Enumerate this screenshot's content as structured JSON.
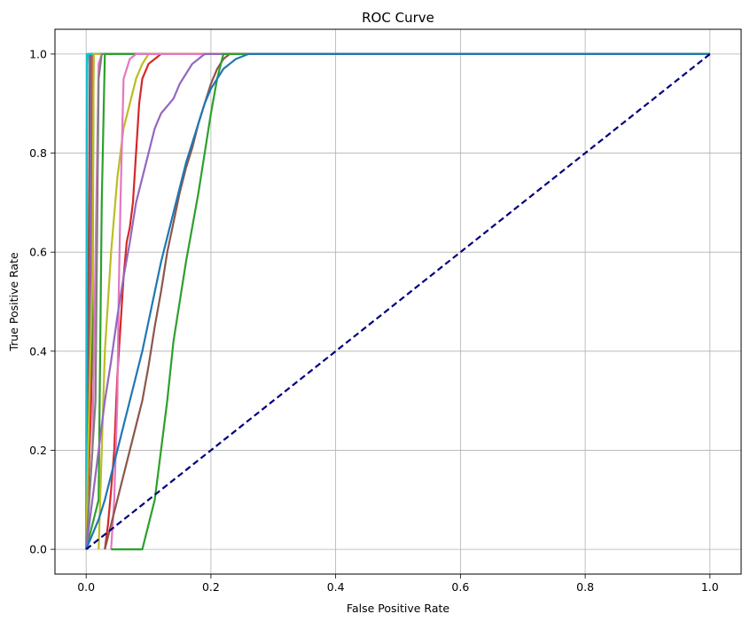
{
  "chart_data": {
    "type": "line",
    "title": "ROC Curve",
    "xlabel": "False Positive Rate",
    "ylabel": "True Positive Rate",
    "xlim": [
      -0.05,
      1.05
    ],
    "ylim": [
      -0.05,
      1.05
    ],
    "xticks": [
      "0.0",
      "0.2",
      "0.4",
      "0.6",
      "0.8",
      "1.0"
    ],
    "yticks": [
      "0.0",
      "0.2",
      "0.4",
      "0.6",
      "0.8",
      "1.0"
    ],
    "grid": true,
    "legend": "none",
    "series": [
      {
        "color": "#2ca02c",
        "points": [
          [
            0,
            0
          ],
          [
            0.01,
            0.4
          ],
          [
            0.012,
            1
          ],
          [
            1,
            1
          ]
        ]
      },
      {
        "color": "#d62728",
        "points": [
          [
            0,
            0
          ],
          [
            0.008,
            0.3
          ],
          [
            0.01,
            1
          ],
          [
            1,
            1
          ]
        ]
      },
      {
        "color": "#9467bd",
        "points": [
          [
            0,
            0
          ],
          [
            0.006,
            0.5
          ],
          [
            0.008,
            1
          ],
          [
            1,
            1
          ]
        ]
      },
      {
        "color": "#8c564b",
        "points": [
          [
            0,
            0
          ],
          [
            0.004,
            0.6
          ],
          [
            0.006,
            1
          ],
          [
            1,
            1
          ]
        ]
      },
      {
        "color": "#17becf",
        "points": [
          [
            0,
            0
          ],
          [
            0.001,
            0.8
          ],
          [
            0.002,
            0.98
          ],
          [
            0.003,
            1
          ],
          [
            1,
            1
          ]
        ]
      },
      {
        "color": "#17becf",
        "points": [
          [
            0,
            0
          ],
          [
            0.001,
            1
          ],
          [
            1,
            1
          ]
        ]
      },
      {
        "color": "#bcbd22",
        "points": [
          [
            0,
            0
          ],
          [
            0.005,
            0.3
          ],
          [
            0.01,
            0.55
          ],
          [
            0.012,
            1
          ],
          [
            1,
            1
          ]
        ]
      },
      {
        "color": "#e377c2",
        "points": [
          [
            0,
            0
          ],
          [
            0.01,
            0.2
          ],
          [
            0.02,
            0.98
          ],
          [
            0.025,
            1
          ],
          [
            1,
            1
          ]
        ]
      },
      {
        "color": "#7f7f7f",
        "points": [
          [
            0,
            0
          ],
          [
            0.015,
            0.3
          ],
          [
            0.02,
            0.95
          ],
          [
            0.025,
            1
          ],
          [
            1,
            1
          ]
        ]
      },
      {
        "color": "#2ca02c",
        "points": [
          [
            0,
            0
          ],
          [
            0.02,
            0.1
          ],
          [
            0.025,
            0.7
          ],
          [
            0.03,
            1
          ],
          [
            1,
            1
          ]
        ]
      },
      {
        "color": "#d62728",
        "points": [
          [
            0.03,
            0
          ],
          [
            0.035,
            0.05
          ],
          [
            0.04,
            0.12
          ],
          [
            0.045,
            0.2
          ],
          [
            0.05,
            0.35
          ],
          [
            0.055,
            0.45
          ],
          [
            0.06,
            0.55
          ],
          [
            0.065,
            0.62
          ],
          [
            0.07,
            0.65
          ],
          [
            0.075,
            0.7
          ],
          [
            0.08,
            0.8
          ],
          [
            0.085,
            0.9
          ],
          [
            0.09,
            0.95
          ],
          [
            0.1,
            0.98
          ],
          [
            0.12,
            1
          ],
          [
            1,
            1
          ]
        ]
      },
      {
        "color": "#bcbd22",
        "points": [
          [
            0.02,
            0
          ],
          [
            0.025,
            0.2
          ],
          [
            0.03,
            0.4
          ],
          [
            0.04,
            0.6
          ],
          [
            0.05,
            0.75
          ],
          [
            0.06,
            0.85
          ],
          [
            0.07,
            0.9
          ],
          [
            0.08,
            0.95
          ],
          [
            0.09,
            0.98
          ],
          [
            0.1,
            1
          ],
          [
            1,
            1
          ]
        ]
      },
      {
        "color": "#e377c2",
        "points": [
          [
            0.04,
            0
          ],
          [
            0.045,
            0.1
          ],
          [
            0.05,
            0.3
          ],
          [
            0.052,
            0.5
          ],
          [
            0.055,
            0.7
          ],
          [
            0.058,
            0.85
          ],
          [
            0.06,
            0.95
          ],
          [
            0.07,
            0.99
          ],
          [
            0.08,
            1
          ],
          [
            1,
            1
          ]
        ]
      },
      {
        "color": "#9467bd",
        "points": [
          [
            0,
            0
          ],
          [
            0.01,
            0.1
          ],
          [
            0.02,
            0.2
          ],
          [
            0.03,
            0.3
          ],
          [
            0.04,
            0.38
          ],
          [
            0.05,
            0.47
          ],
          [
            0.06,
            0.55
          ],
          [
            0.07,
            0.62
          ],
          [
            0.08,
            0.7
          ],
          [
            0.09,
            0.75
          ],
          [
            0.1,
            0.8
          ],
          [
            0.11,
            0.85
          ],
          [
            0.12,
            0.88
          ],
          [
            0.14,
            0.91
          ],
          [
            0.15,
            0.94
          ],
          [
            0.16,
            0.96
          ],
          [
            0.17,
            0.98
          ],
          [
            0.18,
            0.99
          ],
          [
            0.19,
            1
          ],
          [
            1,
            1
          ]
        ]
      },
      {
        "color": "#8c564b",
        "points": [
          [
            0.03,
            0
          ],
          [
            0.04,
            0.05
          ],
          [
            0.05,
            0.1
          ],
          [
            0.06,
            0.15
          ],
          [
            0.07,
            0.2
          ],
          [
            0.08,
            0.25
          ],
          [
            0.09,
            0.3
          ],
          [
            0.1,
            0.37
          ],
          [
            0.11,
            0.45
          ],
          [
            0.12,
            0.52
          ],
          [
            0.13,
            0.6
          ],
          [
            0.14,
            0.66
          ],
          [
            0.15,
            0.72
          ],
          [
            0.16,
            0.77
          ],
          [
            0.17,
            0.81
          ],
          [
            0.18,
            0.86
          ],
          [
            0.19,
            0.9
          ],
          [
            0.2,
            0.94
          ],
          [
            0.21,
            0.97
          ],
          [
            0.22,
            0.99
          ],
          [
            0.23,
            1
          ],
          [
            1,
            1
          ]
        ]
      },
      {
        "color": "#2ca02c",
        "points": [
          [
            0.04,
            0
          ],
          [
            0.05,
            0
          ],
          [
            0.06,
            0
          ],
          [
            0.07,
            0
          ],
          [
            0.08,
            0
          ],
          [
            0.09,
            0
          ],
          [
            0.1,
            0.05
          ],
          [
            0.11,
            0.1
          ],
          [
            0.12,
            0.2
          ],
          [
            0.13,
            0.3
          ],
          [
            0.14,
            0.42
          ],
          [
            0.15,
            0.5
          ],
          [
            0.16,
            0.58
          ],
          [
            0.17,
            0.65
          ],
          [
            0.18,
            0.72
          ],
          [
            0.19,
            0.8
          ],
          [
            0.2,
            0.88
          ],
          [
            0.21,
            0.95
          ],
          [
            0.22,
            1
          ],
          [
            1,
            1
          ]
        ]
      },
      {
        "color": "#1f77b4",
        "points": [
          [
            0,
            0
          ],
          [
            0.01,
            0.03
          ],
          [
            0.02,
            0.06
          ],
          [
            0.03,
            0.1
          ],
          [
            0.04,
            0.15
          ],
          [
            0.05,
            0.2
          ],
          [
            0.06,
            0.25
          ],
          [
            0.07,
            0.3
          ],
          [
            0.08,
            0.35
          ],
          [
            0.09,
            0.4
          ],
          [
            0.1,
            0.46
          ],
          [
            0.11,
            0.52
          ],
          [
            0.12,
            0.58
          ],
          [
            0.13,
            0.63
          ],
          [
            0.14,
            0.68
          ],
          [
            0.15,
            0.73
          ],
          [
            0.16,
            0.78
          ],
          [
            0.17,
            0.82
          ],
          [
            0.18,
            0.86
          ],
          [
            0.19,
            0.9
          ],
          [
            0.2,
            0.93
          ],
          [
            0.21,
            0.95
          ],
          [
            0.22,
            0.97
          ],
          [
            0.23,
            0.98
          ],
          [
            0.24,
            0.99
          ],
          [
            0.26,
            1
          ],
          [
            0.3,
            1
          ],
          [
            1,
            1
          ]
        ]
      },
      {
        "color": "#000080",
        "dashed": true,
        "points": [
          [
            0,
            0
          ],
          [
            1,
            1
          ]
        ]
      }
    ]
  }
}
